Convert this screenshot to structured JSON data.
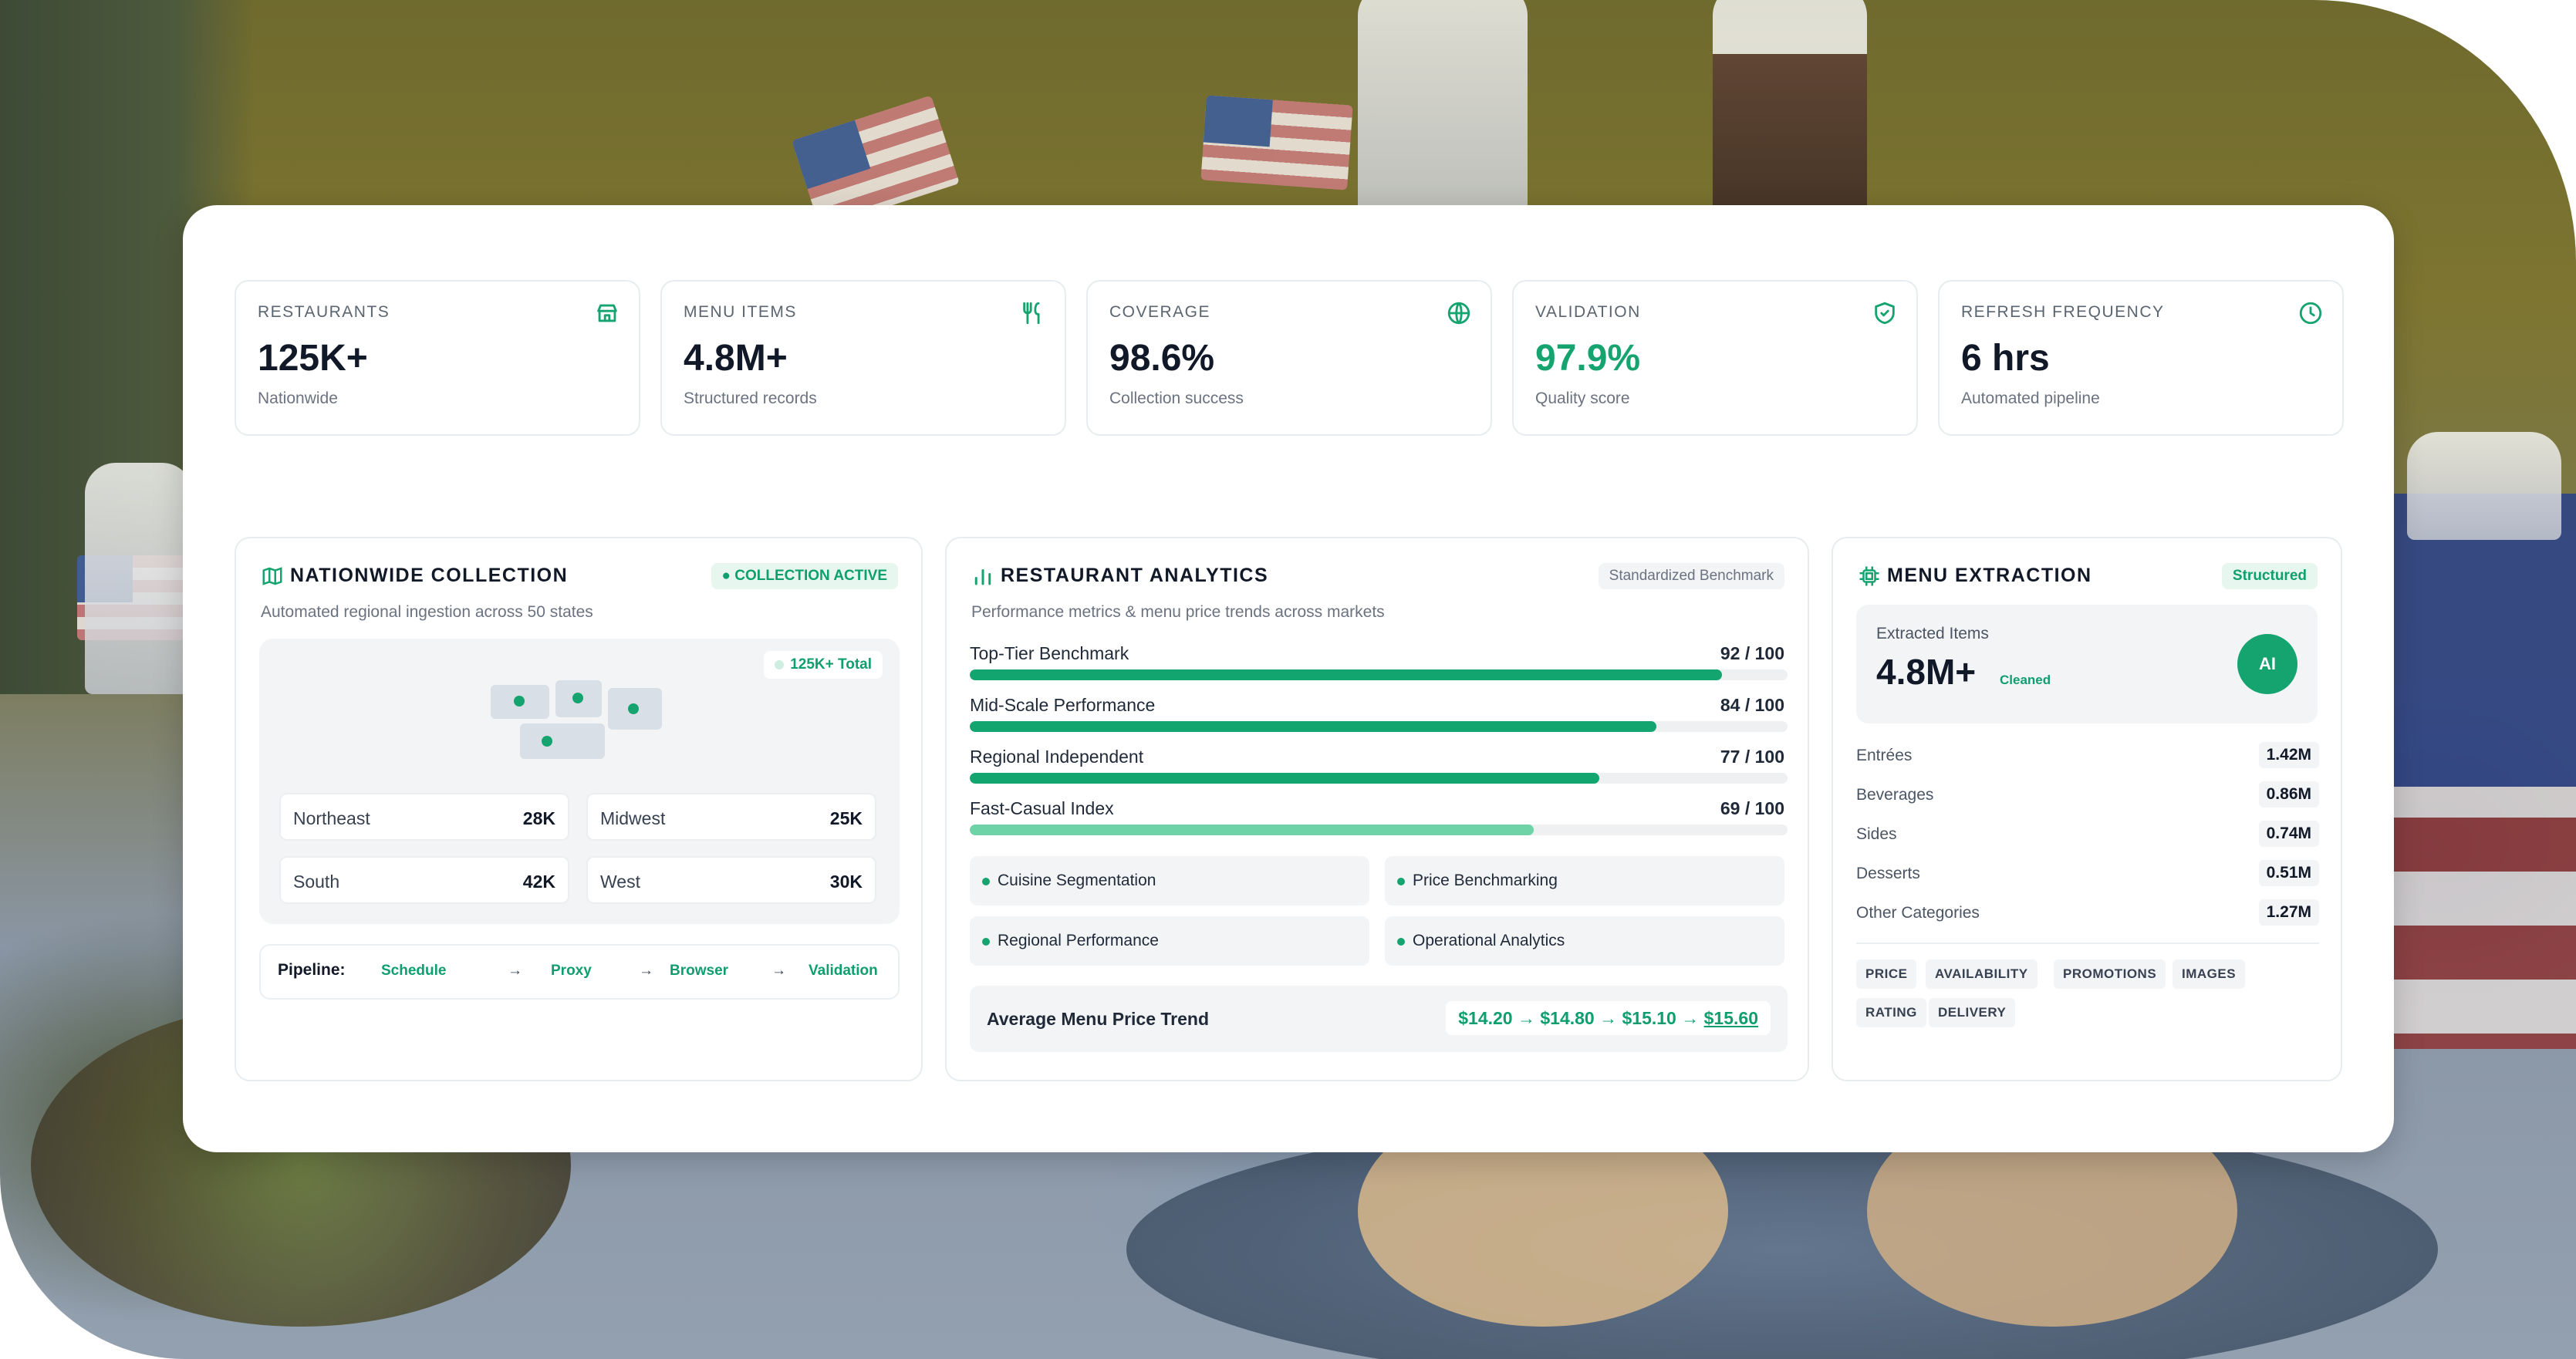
{
  "stats": [
    {
      "label": "RESTAURANTS",
      "value": "125K+",
      "sub": "Nationwide",
      "icon": "store-icon",
      "accent": false
    },
    {
      "label": "MENU ITEMS",
      "value": "4.8M+",
      "sub": "Structured records",
      "icon": "utensils-icon",
      "accent": false
    },
    {
      "label": "COVERAGE",
      "value": "98.6%",
      "sub": "Collection success",
      "icon": "globe-icon",
      "accent": false
    },
    {
      "label": "VALIDATION",
      "value": "97.9%",
      "sub": "Quality score",
      "icon": "shield-check-icon",
      "accent": true
    },
    {
      "label": "REFRESH FREQUENCY",
      "value": "6 hrs",
      "sub": "Automated pipeline",
      "icon": "clock-icon",
      "accent": false
    }
  ],
  "nationwide": {
    "title": "NATIONWIDE COLLECTION",
    "badge": "● COLLECTION ACTIVE",
    "subtitle": "Automated regional ingestion across 50 states",
    "total": "125K+ Total",
    "regions": [
      {
        "name": "Northeast",
        "value": "28K"
      },
      {
        "name": "Midwest",
        "value": "25K"
      },
      {
        "name": "South",
        "value": "42K"
      },
      {
        "name": "West",
        "value": "30K"
      }
    ],
    "pipeline": {
      "label": "Pipeline:",
      "steps": [
        "Schedule",
        "Proxy",
        "Browser",
        "Validation"
      ],
      "arrow": "→"
    }
  },
  "analytics": {
    "title": "RESTAURANT ANALYTICS",
    "badge": "Standardized Benchmark",
    "subtitle": "Performance metrics & menu price trends across markets",
    "metrics": [
      {
        "name": "Top-Tier Benchmark",
        "score": "92 / 100",
        "value": 92
      },
      {
        "name": "Mid-Scale Performance",
        "score": "84 / 100",
        "value": 84
      },
      {
        "name": "Regional Independent",
        "score": "77 / 100",
        "value": 77
      },
      {
        "name": "Fast-Casual Index",
        "score": "69 / 100",
        "value": 69
      }
    ],
    "chips": [
      "Cuisine Segmentation",
      "Price Benchmarking",
      "Regional Performance",
      "Operational Analytics"
    ],
    "trend": {
      "label": "Average Menu Price Trend",
      "prefix": "$14.20 → $14.80 → $15.10 → ",
      "latest": "$15.60"
    }
  },
  "extraction": {
    "title": "MENU EXTRACTION",
    "badge": "Structured",
    "label": "Extracted Items",
    "value": "4.8M+",
    "cleaned": "Cleaned",
    "ai": "AI",
    "categories": [
      {
        "name": "Entrées",
        "value": "1.42M"
      },
      {
        "name": "Beverages",
        "value": "0.86M"
      },
      {
        "name": "Sides",
        "value": "0.74M"
      },
      {
        "name": "Desserts",
        "value": "0.51M"
      },
      {
        "name": "Other Categories",
        "value": "1.27M"
      }
    ],
    "tags": [
      "PRICE",
      "AVAILABILITY",
      "PROMOTIONS",
      "IMAGES",
      "RATING",
      "DELIVERY"
    ]
  },
  "colors": {
    "accent": "#15a46f",
    "accent_dark": "#0f9f6e",
    "badge_bg": "#e7f7ef"
  }
}
